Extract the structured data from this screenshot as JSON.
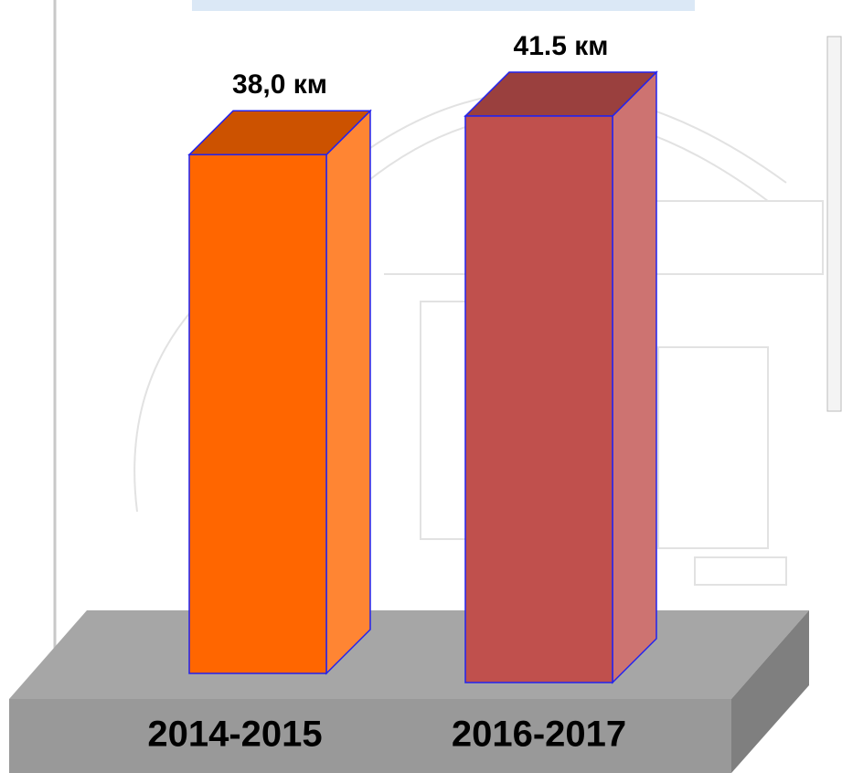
{
  "chart_data": {
    "type": "bar3d",
    "categories": [
      "2014-2015",
      "2016-2017"
    ],
    "values": [
      38.0,
      41.5
    ],
    "value_labels": [
      "38,0 км",
      "41.5 км"
    ],
    "colors": [
      "#ff6600",
      "#c0504d"
    ]
  }
}
